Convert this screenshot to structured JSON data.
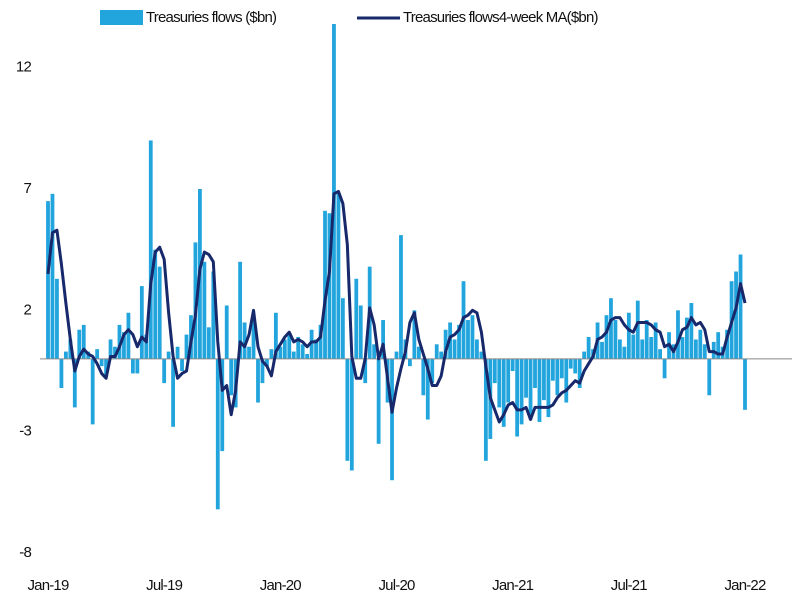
{
  "chart_data": {
    "type": "bar",
    "categories": [
      "Jan-19",
      null,
      null,
      null,
      null,
      null,
      null,
      null,
      null,
      null,
      null,
      null,
      null,
      null,
      null,
      null,
      null,
      null,
      null,
      null,
      null,
      null,
      null,
      null,
      null,
      null,
      "Jul-19",
      null,
      null,
      null,
      null,
      null,
      null,
      null,
      null,
      null,
      null,
      null,
      null,
      null,
      null,
      null,
      null,
      null,
      null,
      null,
      null,
      null,
      null,
      null,
      null,
      null,
      "Jan-20",
      null,
      null,
      null,
      null,
      null,
      null,
      null,
      null,
      null,
      null,
      null,
      null,
      null,
      null,
      null,
      null,
      null,
      null,
      null,
      null,
      null,
      null,
      null,
      null,
      null,
      "Jul-20",
      null,
      null,
      null,
      null,
      null,
      null,
      null,
      null,
      null,
      null,
      null,
      null,
      null,
      null,
      null,
      null,
      null,
      null,
      null,
      null,
      null,
      null,
      null,
      null,
      null,
      "Jan-21",
      null,
      null,
      null,
      null,
      null,
      null,
      null,
      null,
      null,
      null,
      null,
      null,
      null,
      null,
      null,
      null,
      null,
      null,
      null,
      null,
      null,
      null,
      null,
      null,
      null,
      "Jul-21",
      null,
      null,
      null,
      null,
      null,
      null,
      null,
      null,
      null,
      null,
      null,
      null,
      null,
      null,
      null,
      null,
      null,
      null,
      null,
      null,
      null,
      null,
      null,
      null,
      null,
      "Jan-22"
    ],
    "series": [
      {
        "name": "Treasuries flows ($bn)",
        "type": "bar",
        "color": "#22a4dd",
        "values": [
          6.5,
          6.8,
          3.3,
          -1.2,
          0.3,
          0.8,
          -2.0,
          1.2,
          1.4,
          0.3,
          -2.7,
          0.4,
          -0.3,
          -0.7,
          0.8,
          0.5,
          1.4,
          1.1,
          1.9,
          -0.6,
          -0.6,
          3.0,
          1.0,
          9.0,
          4.5,
          3.8,
          -1.0,
          0.3,
          -2.8,
          0.5,
          -0.5,
          1.0,
          1.8,
          4.8,
          7.0,
          4.0,
          1.3,
          3.6,
          -6.2,
          -3.8,
          2.2,
          -1.5,
          -2.0,
          4.0,
          1.5,
          0.5,
          1.8,
          -1.8,
          -1.0,
          -0.3,
          0.4,
          1.9,
          0.5,
          0.8,
          1.0,
          0.3,
          0.9,
          0.6,
          0.2,
          1.2,
          0.8,
          1.4,
          6.1,
          6.0,
          13.8,
          6.8,
          2.5,
          -4.2,
          -4.6,
          3.3,
          2.2,
          -1.0,
          3.8,
          0.6,
          -3.5,
          1.6,
          -1.8,
          -5.0,
          0.3,
          5.1,
          0.8,
          -0.3,
          2.0,
          0.5,
          -1.5,
          -2.5,
          -1.0,
          0.6,
          0.3,
          1.2,
          1.5,
          0.8,
          1.4,
          3.2,
          1.6,
          1.8,
          0.8,
          0.3,
          -4.2,
          -3.3,
          -1.0,
          -2.0,
          -2.8,
          -1.8,
          -0.5,
          -3.2,
          -2.7,
          -1.6,
          -2.5,
          -1.2,
          -2.6,
          -1.7,
          -2.4,
          -0.9,
          -1.5,
          -0.8,
          -1.8,
          -0.4,
          -0.6,
          -1.2,
          0.3,
          0.9,
          0.4,
          1.5,
          0.7,
          1.8,
          2.5,
          1.6,
          0.8,
          0.5,
          1.9,
          1.0,
          2.4,
          0.8,
          1.6,
          0.9,
          1.5,
          0.4,
          -0.8,
          1.1,
          0.6,
          2.0,
          0.9,
          1.7,
          2.3,
          0.8,
          1.2,
          0.6,
          -1.5,
          0.7,
          1.1,
          0.5,
          1.2,
          3.2,
          3.6,
          4.3,
          -2.1
        ]
      },
      {
        "name": "Treasuries flows4-week MA($bn)",
        "type": "line",
        "color": "#17286b",
        "values": [
          3.5,
          5.2,
          5.3,
          3.9,
          2.3,
          0.8,
          -0.5,
          0.1,
          0.4,
          0.2,
          0.1,
          -0.2,
          -0.6,
          -0.8,
          0.1,
          0.1,
          0.5,
          1.0,
          1.2,
          1.0,
          0.5,
          0.9,
          0.7,
          3.1,
          4.4,
          4.6,
          4.1,
          1.9,
          0.1,
          -0.8,
          -0.6,
          -0.5,
          0.7,
          1.8,
          3.7,
          4.4,
          4.3,
          4.0,
          0.7,
          -1.3,
          -1.1,
          -2.3,
          -1.3,
          0.7,
          0.5,
          1.0,
          2.0,
          0.5,
          -0.1,
          -0.3,
          -0.7,
          0.3,
          0.6,
          0.9,
          1.1,
          0.7,
          0.8,
          0.7,
          0.5,
          0.7,
          0.7,
          0.9,
          2.4,
          3.6,
          6.8,
          6.9,
          6.4,
          4.7,
          0.1,
          -0.8,
          -0.8,
          0.0,
          2.1,
          1.4,
          0.0,
          0.6,
          -0.8,
          -2.2,
          -1.2,
          -0.4,
          0.3,
          1.5,
          1.9,
          0.8,
          0.2,
          -0.4,
          -1.1,
          -1.1,
          -0.7,
          0.3,
          0.9,
          1.0,
          1.2,
          1.7,
          1.8,
          2.0,
          1.9,
          1.1,
          -0.3,
          -1.6,
          -2.1,
          -2.6,
          -2.3,
          -1.9,
          -1.8,
          -2.1,
          -2.1,
          -2.0,
          -2.5,
          -2.0,
          -2.0,
          -2.0,
          -2.0,
          -1.9,
          -1.6,
          -1.4,
          -1.3,
          -1.1,
          -0.9,
          -1.0,
          -0.5,
          -0.2,
          0.1,
          0.8,
          0.9,
          1.1,
          1.6,
          1.7,
          1.7,
          1.4,
          1.2,
          1.1,
          1.5,
          1.5,
          1.5,
          1.4,
          1.2,
          1.1,
          0.5,
          0.6,
          0.3,
          0.7,
          1.2,
          1.3,
          1.7,
          1.4,
          1.5,
          1.2,
          0.3,
          0.3,
          0.2,
          0.2,
          0.9,
          1.5,
          2.1,
          3.1,
          2.3
        ]
      }
    ],
    "ylim": [
      -8,
      14.5
    ],
    "yticks": [
      -8,
      -3,
      2,
      7,
      12
    ],
    "grid": false,
    "legend": "top"
  }
}
